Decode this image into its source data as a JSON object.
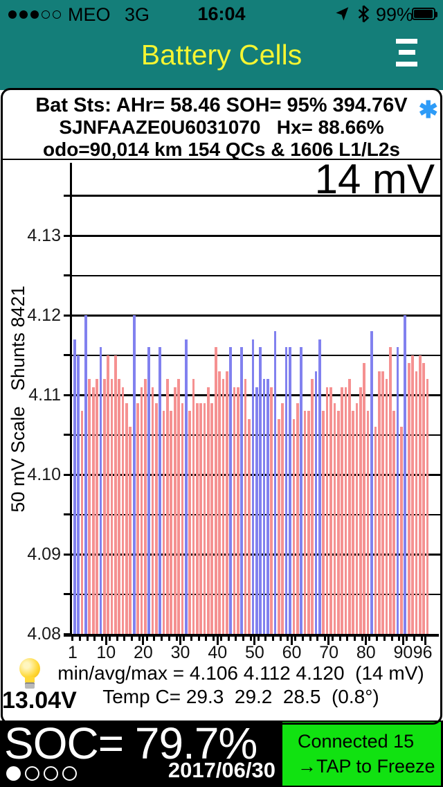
{
  "status_bar": {
    "carrier": "MEO",
    "network": "3G",
    "time": "16:04",
    "battery_pct": "99%",
    "signal_dots_filled": 3,
    "signal_dots_total": 5
  },
  "header": {
    "title": "Battery Cells"
  },
  "info_box": {
    "line1": "Bat Sts: AHr= 58.46 SOH= 95% 394.76V",
    "asterisk": "✱",
    "line2": "SJNFAAZE0U6031070   Hx= 88.66%",
    "line3": "odo=90,014 km 154 QCs & 1606 L1/L2s"
  },
  "chart_data": {
    "type": "bar",
    "annotation": "14 mV",
    "ylabel": "50 mV Scale   Shunts 8421",
    "ylim": [
      4.08,
      4.139
    ],
    "y_major_lines": [
      4.135,
      4.13,
      4.12,
      4.11,
      4.1,
      4.09
    ],
    "y_minor_lines": [
      4.125,
      4.115,
      4.105,
      4.095,
      4.085
    ],
    "y_axis_labels": [
      "4.13",
      "4.12",
      "4.11",
      "4.10",
      "4.09",
      "4.08"
    ],
    "y_axis_label_values": [
      4.13,
      4.12,
      4.11,
      4.1,
      4.09,
      4.08
    ],
    "x_tick_labels": [
      "1",
      "10",
      "20",
      "30",
      "40",
      "50",
      "60",
      "70",
      "80",
      "90",
      "96"
    ],
    "x_tick_cells": [
      1,
      10,
      20,
      30,
      40,
      50,
      60,
      70,
      80,
      90,
      96
    ],
    "cell_count": 96,
    "bar_color": "#f59191",
    "shunt_color": "#8181ef",
    "shunt_cells": [
      1,
      2,
      4,
      8,
      17,
      21,
      24,
      31,
      43,
      46,
      49,
      50,
      51,
      52,
      53,
      55,
      58,
      59,
      62,
      66,
      67,
      81,
      88,
      90
    ],
    "values": [
      4.117,
      4.115,
      4.108,
      4.12,
      4.112,
      4.111,
      4.112,
      4.116,
      4.112,
      4.115,
      4.112,
      4.115,
      4.112,
      4.111,
      4.109,
      4.106,
      4.12,
      4.109,
      4.111,
      4.112,
      4.116,
      4.111,
      4.109,
      4.116,
      4.108,
      4.112,
      4.108,
      4.111,
      4.112,
      4.109,
      4.117,
      4.108,
      4.112,
      4.109,
      4.109,
      4.109,
      4.111,
      4.109,
      4.116,
      4.113,
      4.112,
      4.113,
      4.116,
      4.111,
      4.111,
      4.116,
      4.112,
      4.107,
      4.117,
      4.111,
      4.116,
      4.112,
      4.112,
      4.111,
      4.118,
      4.107,
      4.109,
      4.116,
      4.116,
      4.107,
      4.109,
      4.116,
      4.108,
      4.108,
      4.112,
      4.113,
      4.117,
      4.108,
      4.111,
      4.111,
      4.109,
      4.108,
      4.111,
      4.111,
      4.112,
      4.108,
      4.109,
      4.111,
      4.114,
      4.108,
      4.118,
      4.106,
      4.113,
      4.113,
      4.112,
      4.116,
      4.108,
      4.116,
      4.106,
      4.12,
      4.114,
      4.115,
      4.113,
      4.115,
      4.114,
      4.112
    ]
  },
  "footer_stats": {
    "min_avg_max": "min/avg/max = 4.106 4.112 4.120  (14 mV)",
    "temp": "Temp C= 29.3  29.2  28.5  (0.8°)",
    "aux_voltage": "13.04V"
  },
  "bottom_bar": {
    "soc": "SOC= 79.7%",
    "date": "2017/06/30",
    "page_dots_total": 4,
    "page_dots_active": 1
  },
  "connect_box": {
    "line1": "Connected 15",
    "line2": "→TAP to Freeze",
    "bg_color": "#11e211",
    "text_color": "#000000"
  }
}
